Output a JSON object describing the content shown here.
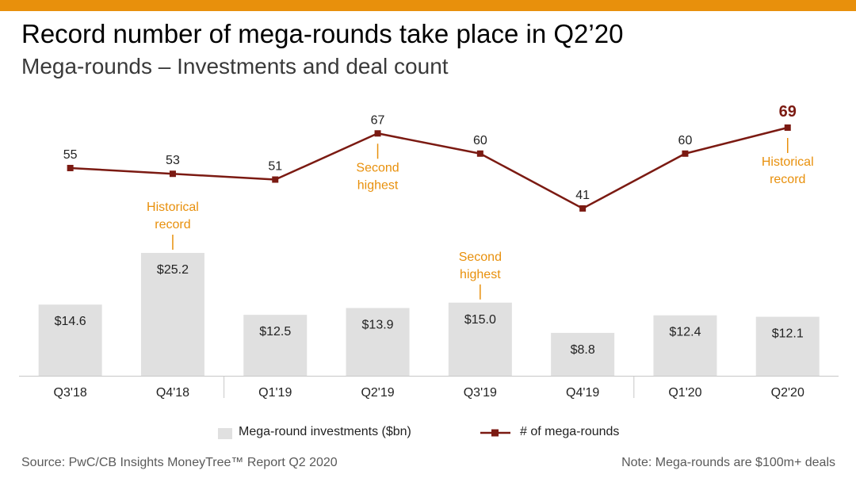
{
  "title": "Record number of mega-rounds take place in Q2’20",
  "subtitle": "Mega-rounds – Investments and deal count",
  "colors": {
    "accent_bar": "#e8900c",
    "bars": "#e0e0e0",
    "line": "#7b1a12",
    "annotation": "#e8900c"
  },
  "chart_data": {
    "type": "bar",
    "categories": [
      "Q3'18",
      "Q4'18",
      "Q1'19",
      "Q2'19",
      "Q3'19",
      "Q4'19",
      "Q1'20",
      "Q2'20"
    ],
    "series": [
      {
        "name": "Mega-round investments ($bn)",
        "type": "bar",
        "values": [
          14.6,
          25.2,
          12.5,
          13.9,
          15.0,
          8.8,
          12.4,
          12.1
        ],
        "labels": [
          "$14.6",
          "$25.2",
          "$12.5",
          "$13.9",
          "$15.0",
          "$8.8",
          "$12.4",
          "$12.1"
        ]
      },
      {
        "name": "# of mega-rounds",
        "type": "line",
        "values": [
          55,
          53,
          51,
          67,
          60,
          41,
          60,
          69
        ],
        "labels": [
          "55",
          "53",
          "51",
          "67",
          "60",
          "41",
          "60",
          "69"
        ]
      }
    ],
    "annotations": [
      {
        "series": "# of mega-rounds",
        "category": "Q2'19",
        "text": [
          "Second",
          "highest"
        ]
      },
      {
        "series": "# of mega-rounds",
        "category": "Q2'20",
        "text": [
          "Historical",
          "record"
        ]
      },
      {
        "series": "Mega-round investments ($bn)",
        "category": "Q4'18",
        "text": [
          "Historical",
          "record"
        ]
      },
      {
        "series": "Mega-round investments ($bn)",
        "category": "Q3'19",
        "text": [
          "Second",
          "highest"
        ]
      }
    ],
    "year_separators": true,
    "grid": false,
    "legend_position": "bottom"
  },
  "legend": {
    "bar_label": "Mega-round investments ($bn)",
    "line_label": "# of mega-rounds"
  },
  "footer": {
    "source": "Source: PwC/CB Insights MoneyTree™ Report Q2 2020",
    "note": "Note: Mega-rounds are $100m+ deals"
  }
}
